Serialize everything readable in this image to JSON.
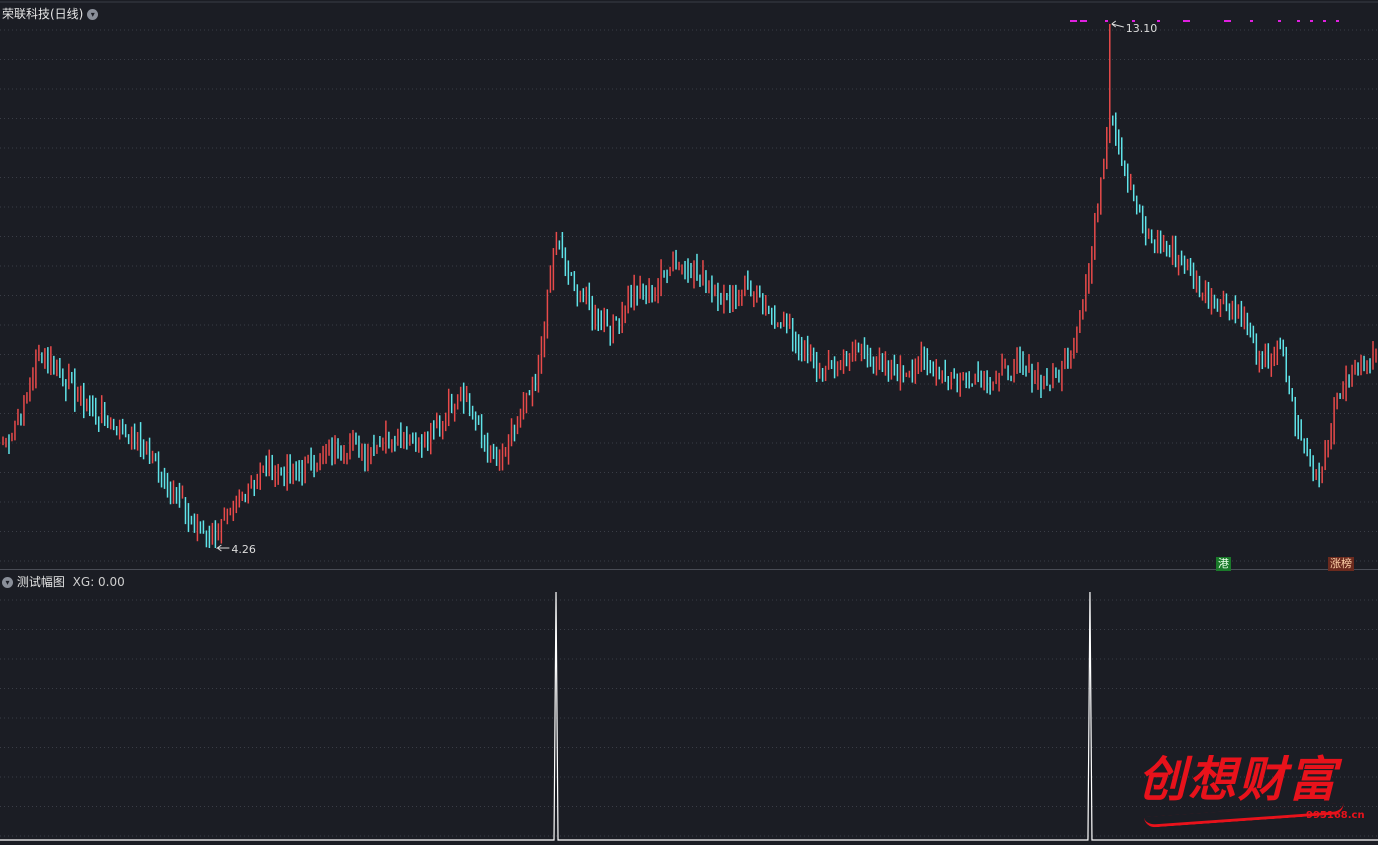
{
  "main_panel": {
    "title": "荣联科技(日线)",
    "high_label": "13.10",
    "low_label": "4.26",
    "badge_hk": "港",
    "badge_rank": "涨榜"
  },
  "sub_panel": {
    "title": "测试幅图",
    "value_label": "XG: 0.00"
  },
  "watermark": {
    "text": "创想财富",
    "url": "995168.cn"
  },
  "colors": {
    "background": "#1b1d24",
    "up": "#e84a4a",
    "down": "#5fe3e8",
    "grid": "#3a3d46",
    "signal": "#ffffff",
    "marker": "#e020e0",
    "watermark": "#e8121b"
  },
  "chart_data": [
    {
      "type": "candlestick",
      "title": "荣联科技(日线)",
      "ylim": [
        3.8,
        13.5
      ],
      "annotations": [
        {
          "label": "13.10",
          "value": 13.1,
          "kind": "high"
        },
        {
          "label": "4.26",
          "value": 4.26,
          "kind": "low"
        }
      ],
      "price_path": [
        6.0,
        6.6,
        7.6,
        7.2,
        6.8,
        6.5,
        6.3,
        6.1,
        5.7,
        5.2,
        4.6,
        4.5,
        4.8,
        5.4,
        5.6,
        5.5,
        5.7,
        5.8,
        6.0,
        5.9,
        6.1,
        6.2,
        6.0,
        6.4,
        7.0,
        6.2,
        5.6,
        6.4,
        7.1,
        9.5,
        8.6,
        8.2,
        8.0,
        8.6,
        8.5,
        9.1,
        9.0,
        8.7,
        8.4,
        8.7,
        8.2,
        8.1,
        7.5,
        7.2,
        7.4,
        7.6,
        7.3,
        7.2,
        7.4,
        7.3,
        7.1,
        7.2,
        7.1,
        7.3,
        7.2,
        7.0,
        7.6,
        9.0,
        11.7,
        10.4,
        9.5,
        9.3,
        9.1,
        8.5,
        8.4,
        8.2,
        7.3,
        7.6,
        6.1,
        5.5,
        6.8,
        7.3,
        7.5
      ],
      "markers_top_count": 11
    },
    {
      "type": "line",
      "title": "测试幅图",
      "series": [
        {
          "name": "XG",
          "value": 0.0
        }
      ],
      "signal_index": [
        29,
        57
      ]
    }
  ]
}
